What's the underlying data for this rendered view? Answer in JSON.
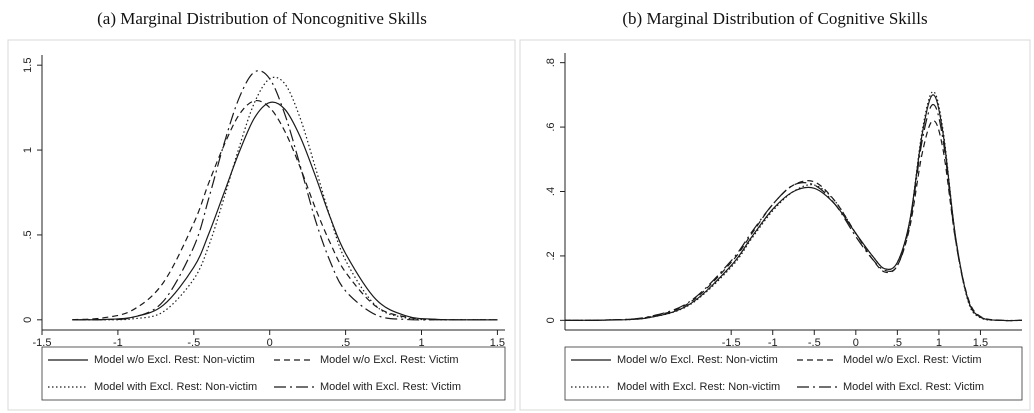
{
  "chart_data": [
    {
      "type": "line",
      "title": "(a) Marginal Distribution of Noncognitive Skills",
      "x": [
        -1.3,
        -1.1,
        -0.9,
        -0.7,
        -0.5,
        -0.4,
        -0.3,
        -0.2,
        -0.1,
        0,
        0.1,
        0.2,
        0.3,
        0.4,
        0.5,
        0.7,
        0.9,
        1.1,
        1.3,
        1.5
      ],
      "series": [
        {
          "name": "Model w/o Excl. Rest: Non-victim",
          "color": "#1a1a1a",
          "style": "solid",
          "values": [
            0,
            0.002,
            0.016,
            0.087,
            0.31,
            0.51,
            0.75,
            0.99,
            1.19,
            1.28,
            1.24,
            1.08,
            0.85,
            0.6,
            0.39,
            0.12,
            0.023,
            0.003,
            0,
            0
          ]
        },
        {
          "name": "Model w/o Excl. Rest: Victim",
          "color": "#1a1a1a",
          "style": "dashed",
          "values": [
            0.001,
            0.011,
            0.059,
            0.22,
            0.57,
            0.81,
            1.03,
            1.21,
            1.29,
            1.25,
            1.11,
            0.9,
            0.66,
            0.45,
            0.28,
            0.079,
            0.016,
            0.002,
            0,
            0
          ]
        },
        {
          "name": "Model with Excl. Rest: Non-victim",
          "color": "#1a1a1a",
          "style": "dotted",
          "values": [
            0,
            0,
            0.006,
            0.048,
            0.24,
            0.44,
            0.72,
            1.02,
            1.28,
            1.42,
            1.39,
            1.19,
            0.9,
            0.6,
            0.35,
            0.082,
            0.011,
            0.001,
            0,
            0
          ]
        },
        {
          "name": "Model with Excl. Rest: Victim",
          "color": "#1a1a1a",
          "style": "dashdot",
          "values": [
            0,
            0.001,
            0.015,
            0.11,
            0.43,
            0.72,
            1.04,
            1.31,
            1.46,
            1.42,
            1.21,
            0.91,
            0.59,
            0.34,
            0.17,
            0.029,
            0.002,
            0,
            0,
            0
          ]
        }
      ],
      "xlim": [
        -1.5,
        1.55
      ],
      "xticks": [
        -1.5,
        -1,
        {
          "value": -0.5,
          "label": "-.5"
        },
        0,
        {
          "value": 0.5,
          "label": ".5"
        },
        1,
        1.5
      ],
      "ylim": [
        -0.06,
        1.56
      ],
      "yticks": [
        0,
        {
          "value": 0.5,
          "label": ".5"
        },
        1,
        1.5
      ]
    },
    {
      "type": "line",
      "title": "(b) Marginal Distribution of Cognitive Skills",
      "x": [
        -3.5,
        -3,
        -2.5,
        -2,
        -1.5,
        -1.25,
        -1,
        -0.75,
        -0.5,
        -0.25,
        0,
        0.2,
        0.35,
        0.5,
        0.65,
        0.8,
        0.93,
        1.05,
        1.2,
        1.35,
        1.5,
        1.75,
        2
      ],
      "series": [
        {
          "name": "Model w/o Excl. Rest: Non-victim",
          "color": "#1a1a1a",
          "style": "solid",
          "values": [
            0,
            0.001,
            0.008,
            0.05,
            0.17,
            0.26,
            0.345,
            0.4,
            0.41,
            0.36,
            0.27,
            0.2,
            0.16,
            0.18,
            0.31,
            0.58,
            0.7,
            0.58,
            0.26,
            0.065,
            0.01,
            0,
            0
          ]
        },
        {
          "name": "Model w/o Excl. Rest: Victim",
          "color": "#1a1a1a",
          "style": "dashed",
          "values": [
            0,
            0.001,
            0.01,
            0.055,
            0.18,
            0.27,
            0.36,
            0.42,
            0.43,
            0.37,
            0.27,
            0.19,
            0.15,
            0.17,
            0.29,
            0.52,
            0.62,
            0.53,
            0.25,
            0.07,
            0.012,
            0,
            0
          ]
        },
        {
          "name": "Model with Excl. Rest: Non-victim",
          "color": "#1a1a1a",
          "style": "dotted",
          "values": [
            0,
            0.001,
            0.008,
            0.048,
            0.165,
            0.255,
            0.34,
            0.4,
            0.42,
            0.37,
            0.27,
            0.2,
            0.16,
            0.18,
            0.31,
            0.59,
            0.71,
            0.59,
            0.26,
            0.06,
            0.008,
            0,
            0
          ]
        },
        {
          "name": "Model with Excl. Rest: Victim",
          "color": "#1a1a1a",
          "style": "dashdot",
          "values": [
            0,
            0.001,
            0.011,
            0.058,
            0.185,
            0.275,
            0.36,
            0.42,
            0.42,
            0.36,
            0.26,
            0.19,
            0.155,
            0.17,
            0.3,
            0.56,
            0.67,
            0.56,
            0.25,
            0.065,
            0.01,
            0,
            0
          ]
        }
      ],
      "xlim": [
        -3.5,
        2
      ],
      "xticks": [
        -1.5,
        -1,
        {
          "value": -0.5,
          "label": "-.5"
        },
        0,
        {
          "value": 0.5,
          "label": ".5"
        },
        1,
        1.5
      ],
      "ylim": [
        -0.03,
        0.83
      ],
      "yticks": [
        0,
        {
          "value": 0.2,
          "label": ".2"
        },
        {
          "value": 0.4,
          "label": ".4"
        },
        {
          "value": 0.6,
          "label": ".6"
        },
        {
          "value": 0.8,
          "label": ".8"
        }
      ]
    }
  ]
}
